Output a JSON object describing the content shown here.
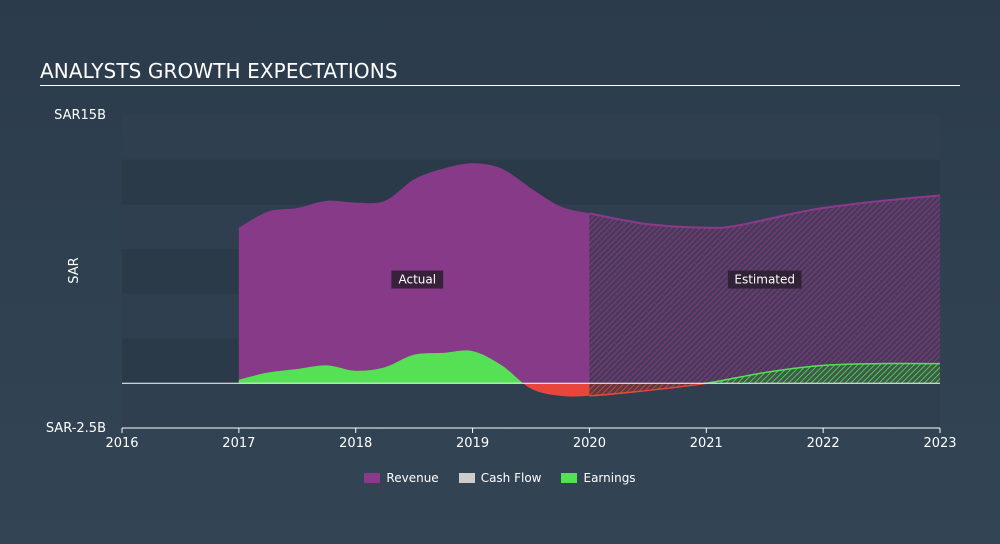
{
  "title": "ANALYSTS GROWTH EXPECTATIONS",
  "chart_data": {
    "type": "area",
    "ylabel": "SAR",
    "y_tick_labels": [
      "SAR15B",
      "SAR-2.5B"
    ],
    "ylim": [
      -2.5,
      15
    ],
    "xlim": [
      2016,
      2023
    ],
    "x_tick_labels": [
      "2016",
      "2017",
      "2018",
      "2019",
      "2020",
      "2021",
      "2022",
      "2023"
    ],
    "actual_label": "Actual",
    "estimated_label": "Estimated",
    "split_x": 2020,
    "colors": {
      "revenue": "#8b3a8b",
      "earnings": "#55e055",
      "negative_earnings": "#e8463c",
      "cash_flow": "#cccccc"
    },
    "series": [
      {
        "name": "Revenue",
        "x": [
          2017.0,
          2017.25,
          2017.5,
          2017.75,
          2018.0,
          2018.25,
          2018.5,
          2018.75,
          2019.0,
          2019.25,
          2019.5,
          2019.75,
          2020.0,
          2020.5,
          2021.0,
          2021.25,
          2021.75,
          2022.0,
          2022.5,
          2023.0
        ],
        "y": [
          8.7,
          9.6,
          9.8,
          10.2,
          10.1,
          10.2,
          11.4,
          12.0,
          12.3,
          12.0,
          10.9,
          9.9,
          9.5,
          8.9,
          8.7,
          8.8,
          9.5,
          9.8,
          10.2,
          10.5
        ]
      },
      {
        "name": "Earnings",
        "x": [
          2017.0,
          2017.25,
          2017.5,
          2017.75,
          2018.0,
          2018.25,
          2018.5,
          2018.75,
          2019.0,
          2019.25,
          2019.5,
          2019.75,
          2020.0,
          2020.5,
          2021.0,
          2021.5,
          2022.0,
          2022.5,
          2023.0
        ],
        "y": [
          0.2,
          0.6,
          0.8,
          1.0,
          0.7,
          0.9,
          1.6,
          1.7,
          1.8,
          1.0,
          -0.3,
          -0.7,
          -0.7,
          -0.4,
          0.0,
          0.6,
          1.0,
          1.1,
          1.1
        ]
      },
      {
        "name": "Cash Flow",
        "x": [],
        "y": []
      }
    ],
    "legend": [
      "Revenue",
      "Cash Flow",
      "Earnings"
    ],
    "legend_position": "bottom-center",
    "grid": true
  }
}
